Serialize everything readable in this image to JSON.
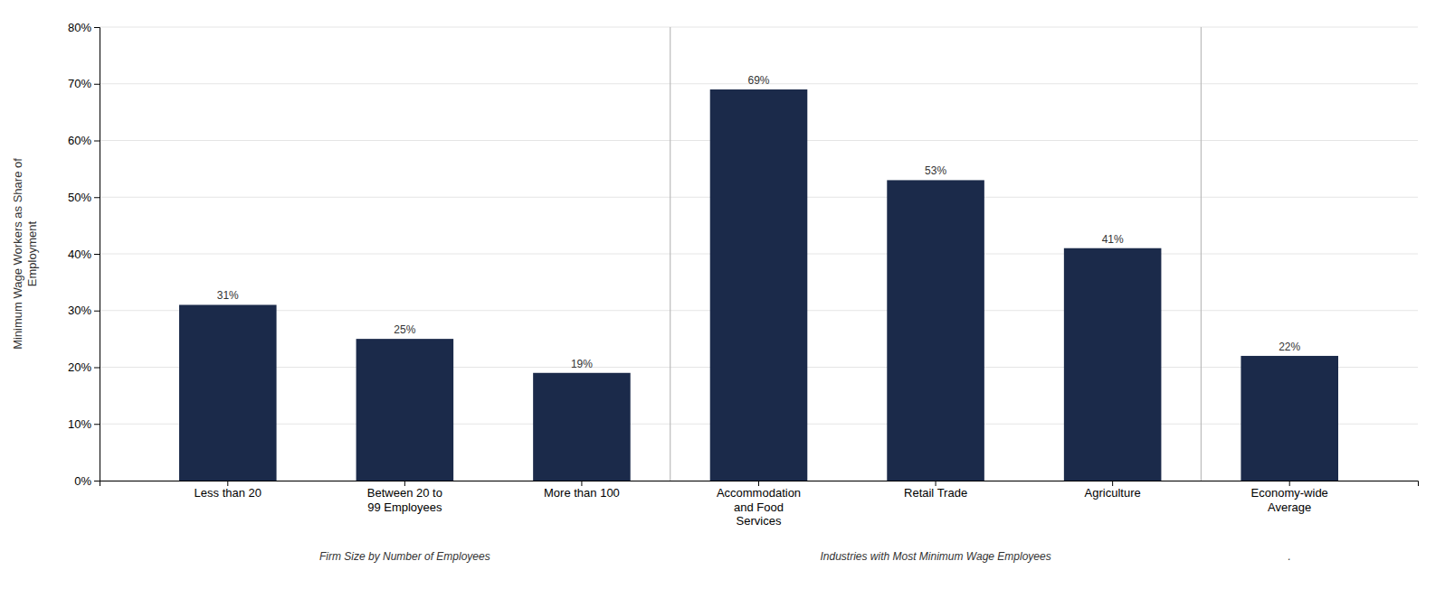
{
  "chart_data": {
    "type": "bar",
    "categories": [
      "Less than 20",
      "Between 20 to\n99 Employees",
      "More than 100",
      "Accommodation\nand Food\nServices",
      "Retail Trade",
      "Agriculture",
      "Economy-wide\nAverage"
    ],
    "values": [
      0.31,
      0.25,
      0.19,
      0.69,
      0.53,
      0.41,
      0.22
    ],
    "value_labels": [
      "31%",
      "25%",
      "19%",
      "69%",
      "53%",
      "41%",
      "22%"
    ],
    "data_labels": true,
    "color": "#1B2A4A",
    "y_label": "Minimum Wage Workers as Share of\nEmployment",
    "ylim": [
      0,
      0.8
    ],
    "yticks": [
      {
        "value": 0.0,
        "label": "0%"
      },
      {
        "value": 0.1,
        "label": "10%"
      },
      {
        "value": 0.2,
        "label": "20%"
      },
      {
        "value": 0.3,
        "label": "30%"
      },
      {
        "value": 0.4,
        "label": "40%"
      },
      {
        "value": 0.5,
        "label": "50%"
      },
      {
        "value": 0.6,
        "label": "60%"
      },
      {
        "value": 0.7,
        "label": "70%"
      },
      {
        "value": 0.8,
        "label": "80%"
      }
    ],
    "grid": true,
    "annotations": [
      {
        "text": "Firm Size by Number of Employees",
        "categories": [
          "Less than 20",
          "Between 20 to\n99 Employees",
          "More than 100"
        ]
      },
      {
        "text": "Industries with Most Minimum Wage Employees",
        "categories": [
          "Accommodation\nand Food\nServices",
          "Retail Trade",
          "Agriculture"
        ]
      },
      {
        "text": ".",
        "categories": [
          "Economy-wide\nAverage"
        ]
      }
    ]
  }
}
